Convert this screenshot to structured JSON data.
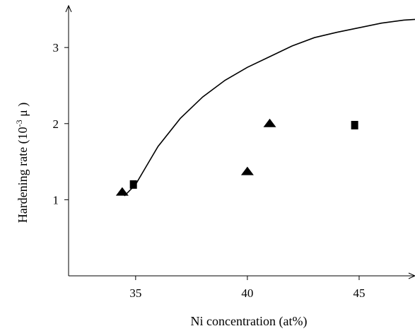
{
  "chart_data": {
    "type": "scatter",
    "xlabel": "Ni concentration (at%)",
    "ylabel_parts": {
      "main": "Hardening rate (10",
      "sup": "-3",
      "unit": " μ )"
    },
    "xlim": [
      32,
      47.5
    ],
    "ylim": [
      0,
      3.55
    ],
    "xticks": [
      35,
      40,
      45
    ],
    "yticks": [
      1,
      2,
      3
    ],
    "grid": false,
    "series": [
      {
        "marker": "triangle",
        "points": [
          {
            "x": 34.4,
            "y": 1.1
          },
          {
            "x": 40.0,
            "y": 1.37
          },
          {
            "x": 41.0,
            "y": 2.0
          }
        ]
      },
      {
        "marker": "square",
        "points": [
          {
            "x": 34.9,
            "y": 1.2
          },
          {
            "x": 44.8,
            "y": 1.98
          }
        ]
      }
    ],
    "curve": {
      "x": [
        34.5,
        35.0,
        35.5,
        36.0,
        37.0,
        38.0,
        39.0,
        40.0,
        41.0,
        42.0,
        43.0,
        44.0,
        45.0,
        46.0,
        47.0,
        47.5
      ],
      "y": [
        1.05,
        1.2,
        1.45,
        1.7,
        2.07,
        2.35,
        2.57,
        2.74,
        2.88,
        3.02,
        3.13,
        3.2,
        3.26,
        3.32,
        3.36,
        3.37
      ]
    }
  }
}
